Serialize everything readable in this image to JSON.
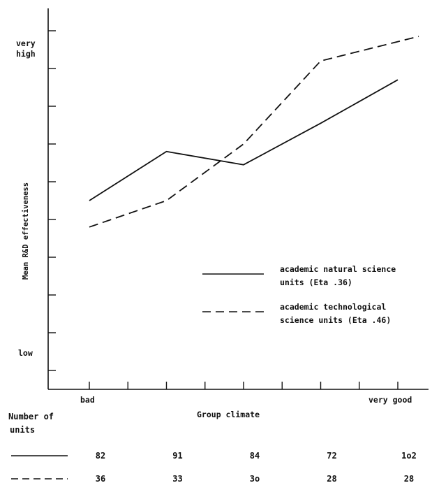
{
  "chart_data": {
    "type": "line",
    "ylabel": "Mean R&D effectiveness",
    "xlabel": "Group climate",
    "x_ticks": {
      "left": "bad",
      "right": "very good"
    },
    "y_ticks": {
      "top": [
        "very",
        "high"
      ],
      "bottom": "low"
    },
    "x_positions": [
      1,
      2,
      3,
      4,
      5
    ],
    "series": [
      {
        "name": "academic natural science units (Eta .36)",
        "style": "solid",
        "legend_lines": [
          "academic natural science",
          "units (Eta .36)"
        ],
        "values": [
          5.0,
          6.3,
          5.95,
          7.05,
          8.2
        ]
      },
      {
        "name": "academic technological science units (Eta .46)",
        "style": "dashed",
        "legend_lines": [
          "academic technological",
          "science units (Eta .46)"
        ],
        "values": [
          4.3,
          5.0,
          6.5,
          8.7,
          9.35
        ]
      }
    ],
    "ylim": [
      0,
      10
    ],
    "grid": false,
    "legend_position": "bottom-right"
  },
  "table": {
    "header_lines": [
      "Number of",
      "units"
    ],
    "rows": [
      {
        "style": "solid",
        "values": [
          "82",
          "91",
          "84",
          "72",
          "1o2"
        ]
      },
      {
        "style": "dashed",
        "values": [
          "36",
          "33",
          "3o",
          "28",
          "28"
        ]
      }
    ]
  }
}
